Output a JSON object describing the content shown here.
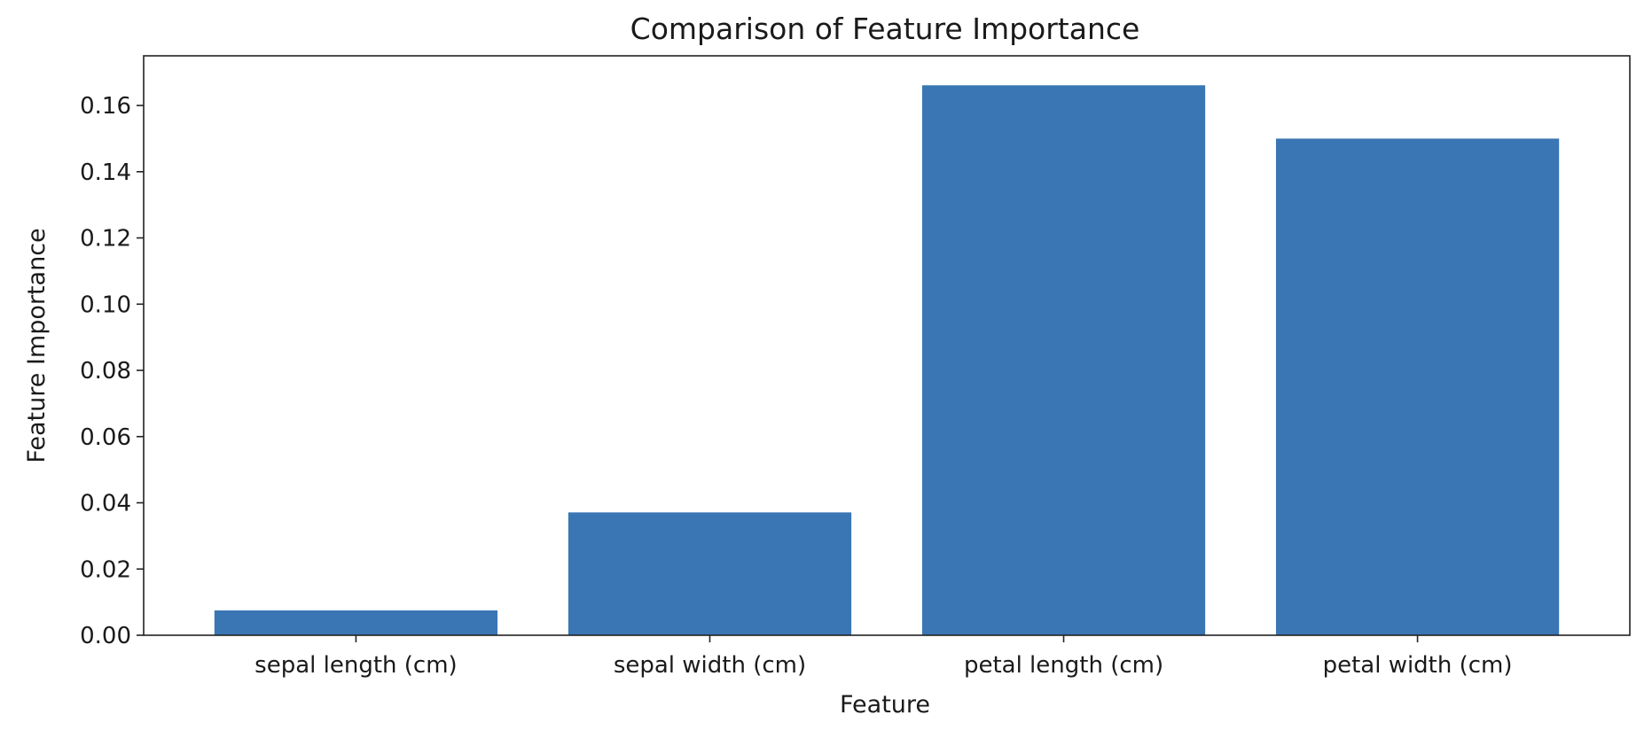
{
  "chart_data": {
    "type": "bar",
    "title": "Comparison of Feature Importance",
    "xlabel": "Feature",
    "ylabel": "Feature Importance",
    "categories": [
      "sepal length (cm)",
      "sepal width (cm)",
      "petal length (cm)",
      "petal width (cm)"
    ],
    "values": [
      0.0075,
      0.0371,
      0.1661,
      0.15
    ],
    "ylim": [
      0,
      0.175
    ],
    "yticks": [
      0.0,
      0.02,
      0.04,
      0.06,
      0.08,
      0.1,
      0.12,
      0.14,
      0.16
    ],
    "ytick_labels": [
      "0.00",
      "0.02",
      "0.04",
      "0.06",
      "0.08",
      "0.10",
      "0.12",
      "0.14",
      "0.16"
    ],
    "grid": false,
    "colors": {
      "bar": "#3a76b3",
      "axes": "#222222",
      "background": "#ffffff"
    }
  }
}
